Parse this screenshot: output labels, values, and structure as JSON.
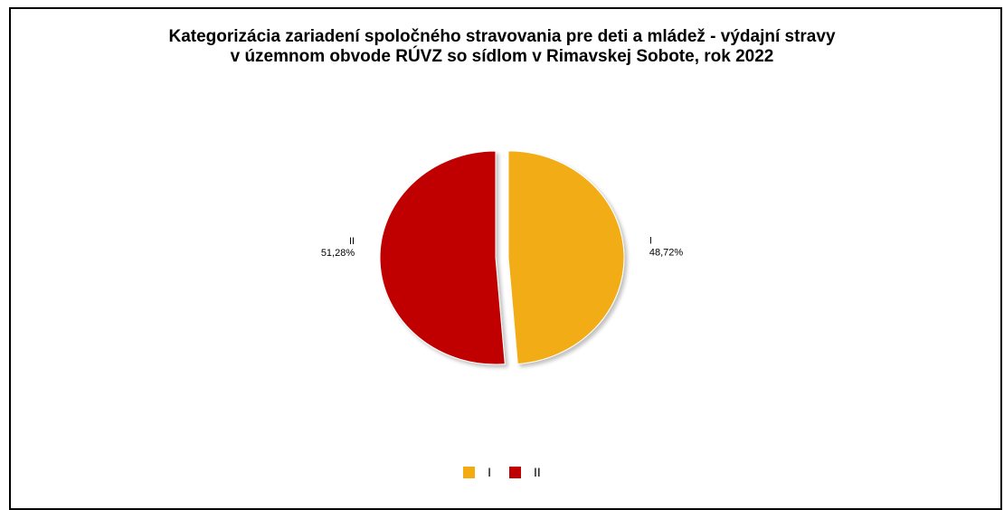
{
  "chart_data": {
    "type": "pie",
    "title": [
      "Kategorizácia zariadení spoločného stravovania pre deti a mládež -  výdajní stravy",
      "v územnom obvode RÚVZ so sídlom v  Rimavskej  Sobote, rok 2022"
    ],
    "slices": [
      {
        "label": "I",
        "value": 48.72,
        "value_label": "48,72%",
        "color": "#F2AC12",
        "exploded": true
      },
      {
        "label": "II",
        "value": 51.28,
        "value_label": "51,28%",
        "color": "#C00000",
        "exploded": false
      }
    ],
    "legend_position": "bottom",
    "legend": [
      "I",
      "II"
    ]
  }
}
